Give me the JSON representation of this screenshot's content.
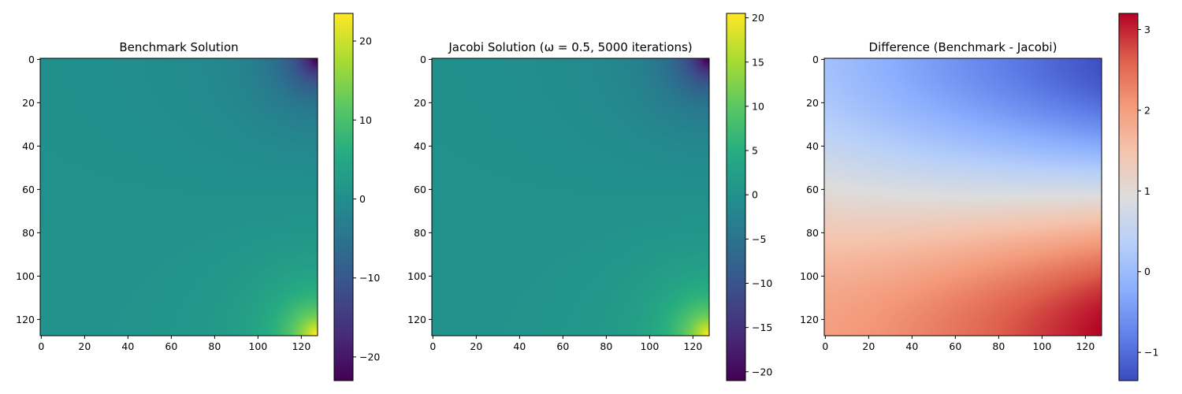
{
  "chart_data": [
    {
      "type": "heatmap",
      "title": "Benchmark Solution",
      "colormap": "viridis",
      "x_ticks": [
        0,
        20,
        40,
        60,
        80,
        100,
        120
      ],
      "y_ticks": [
        0,
        20,
        40,
        60,
        80,
        100,
        120
      ],
      "x_range": [
        0,
        127
      ],
      "y_range": [
        0,
        127
      ],
      "color_range": [
        -23,
        23.5
      ],
      "colorbar_ticks": [
        -20,
        -10,
        0,
        10,
        20
      ],
      "colorbar_tick_labels": [
        "−20",
        "−10",
        "0",
        "10",
        "20"
      ],
      "field": {
        "top_right_corner": -23,
        "bottom_right_corner": 23.5,
        "interior": 0.5
      }
    },
    {
      "type": "heatmap",
      "title": "Jacobi Solution (ω = 0.5, 5000 iterations)",
      "colormap": "viridis",
      "x_ticks": [
        0,
        20,
        40,
        60,
        80,
        100,
        120
      ],
      "y_ticks": [
        0,
        20,
        40,
        60,
        80,
        100,
        120
      ],
      "x_range": [
        0,
        127
      ],
      "y_range": [
        0,
        127
      ],
      "color_range": [
        -21,
        20.5
      ],
      "colorbar_ticks": [
        -20,
        -15,
        -10,
        -5,
        0,
        5,
        10,
        15,
        20
      ],
      "colorbar_tick_labels": [
        "−20",
        "−15",
        "−10",
        "−5",
        "0",
        "5",
        "10",
        "15",
        "20"
      ],
      "field": {
        "top_right_corner": -21,
        "bottom_right_corner": 20.5,
        "interior": 0
      }
    },
    {
      "type": "heatmap",
      "title": "Difference (Benchmark - Jacobi)",
      "colormap": "coolwarm",
      "x_ticks": [
        0,
        20,
        40,
        60,
        80,
        100,
        120
      ],
      "y_ticks": [
        0,
        20,
        40,
        60,
        80,
        100,
        120
      ],
      "x_range": [
        0,
        127
      ],
      "y_range": [
        0,
        127
      ],
      "color_range": [
        -1.35,
        3.2
      ],
      "colorbar_ticks": [
        -1,
        0,
        1,
        2,
        3
      ],
      "colorbar_tick_labels": [
        "−1",
        "0",
        "1",
        "2",
        "3"
      ],
      "field": {
        "top_right": -1.3,
        "top_left": 0.1,
        "middle": 1.0,
        "bottom_left": 2.0,
        "bottom_right": 3.2
      }
    }
  ]
}
